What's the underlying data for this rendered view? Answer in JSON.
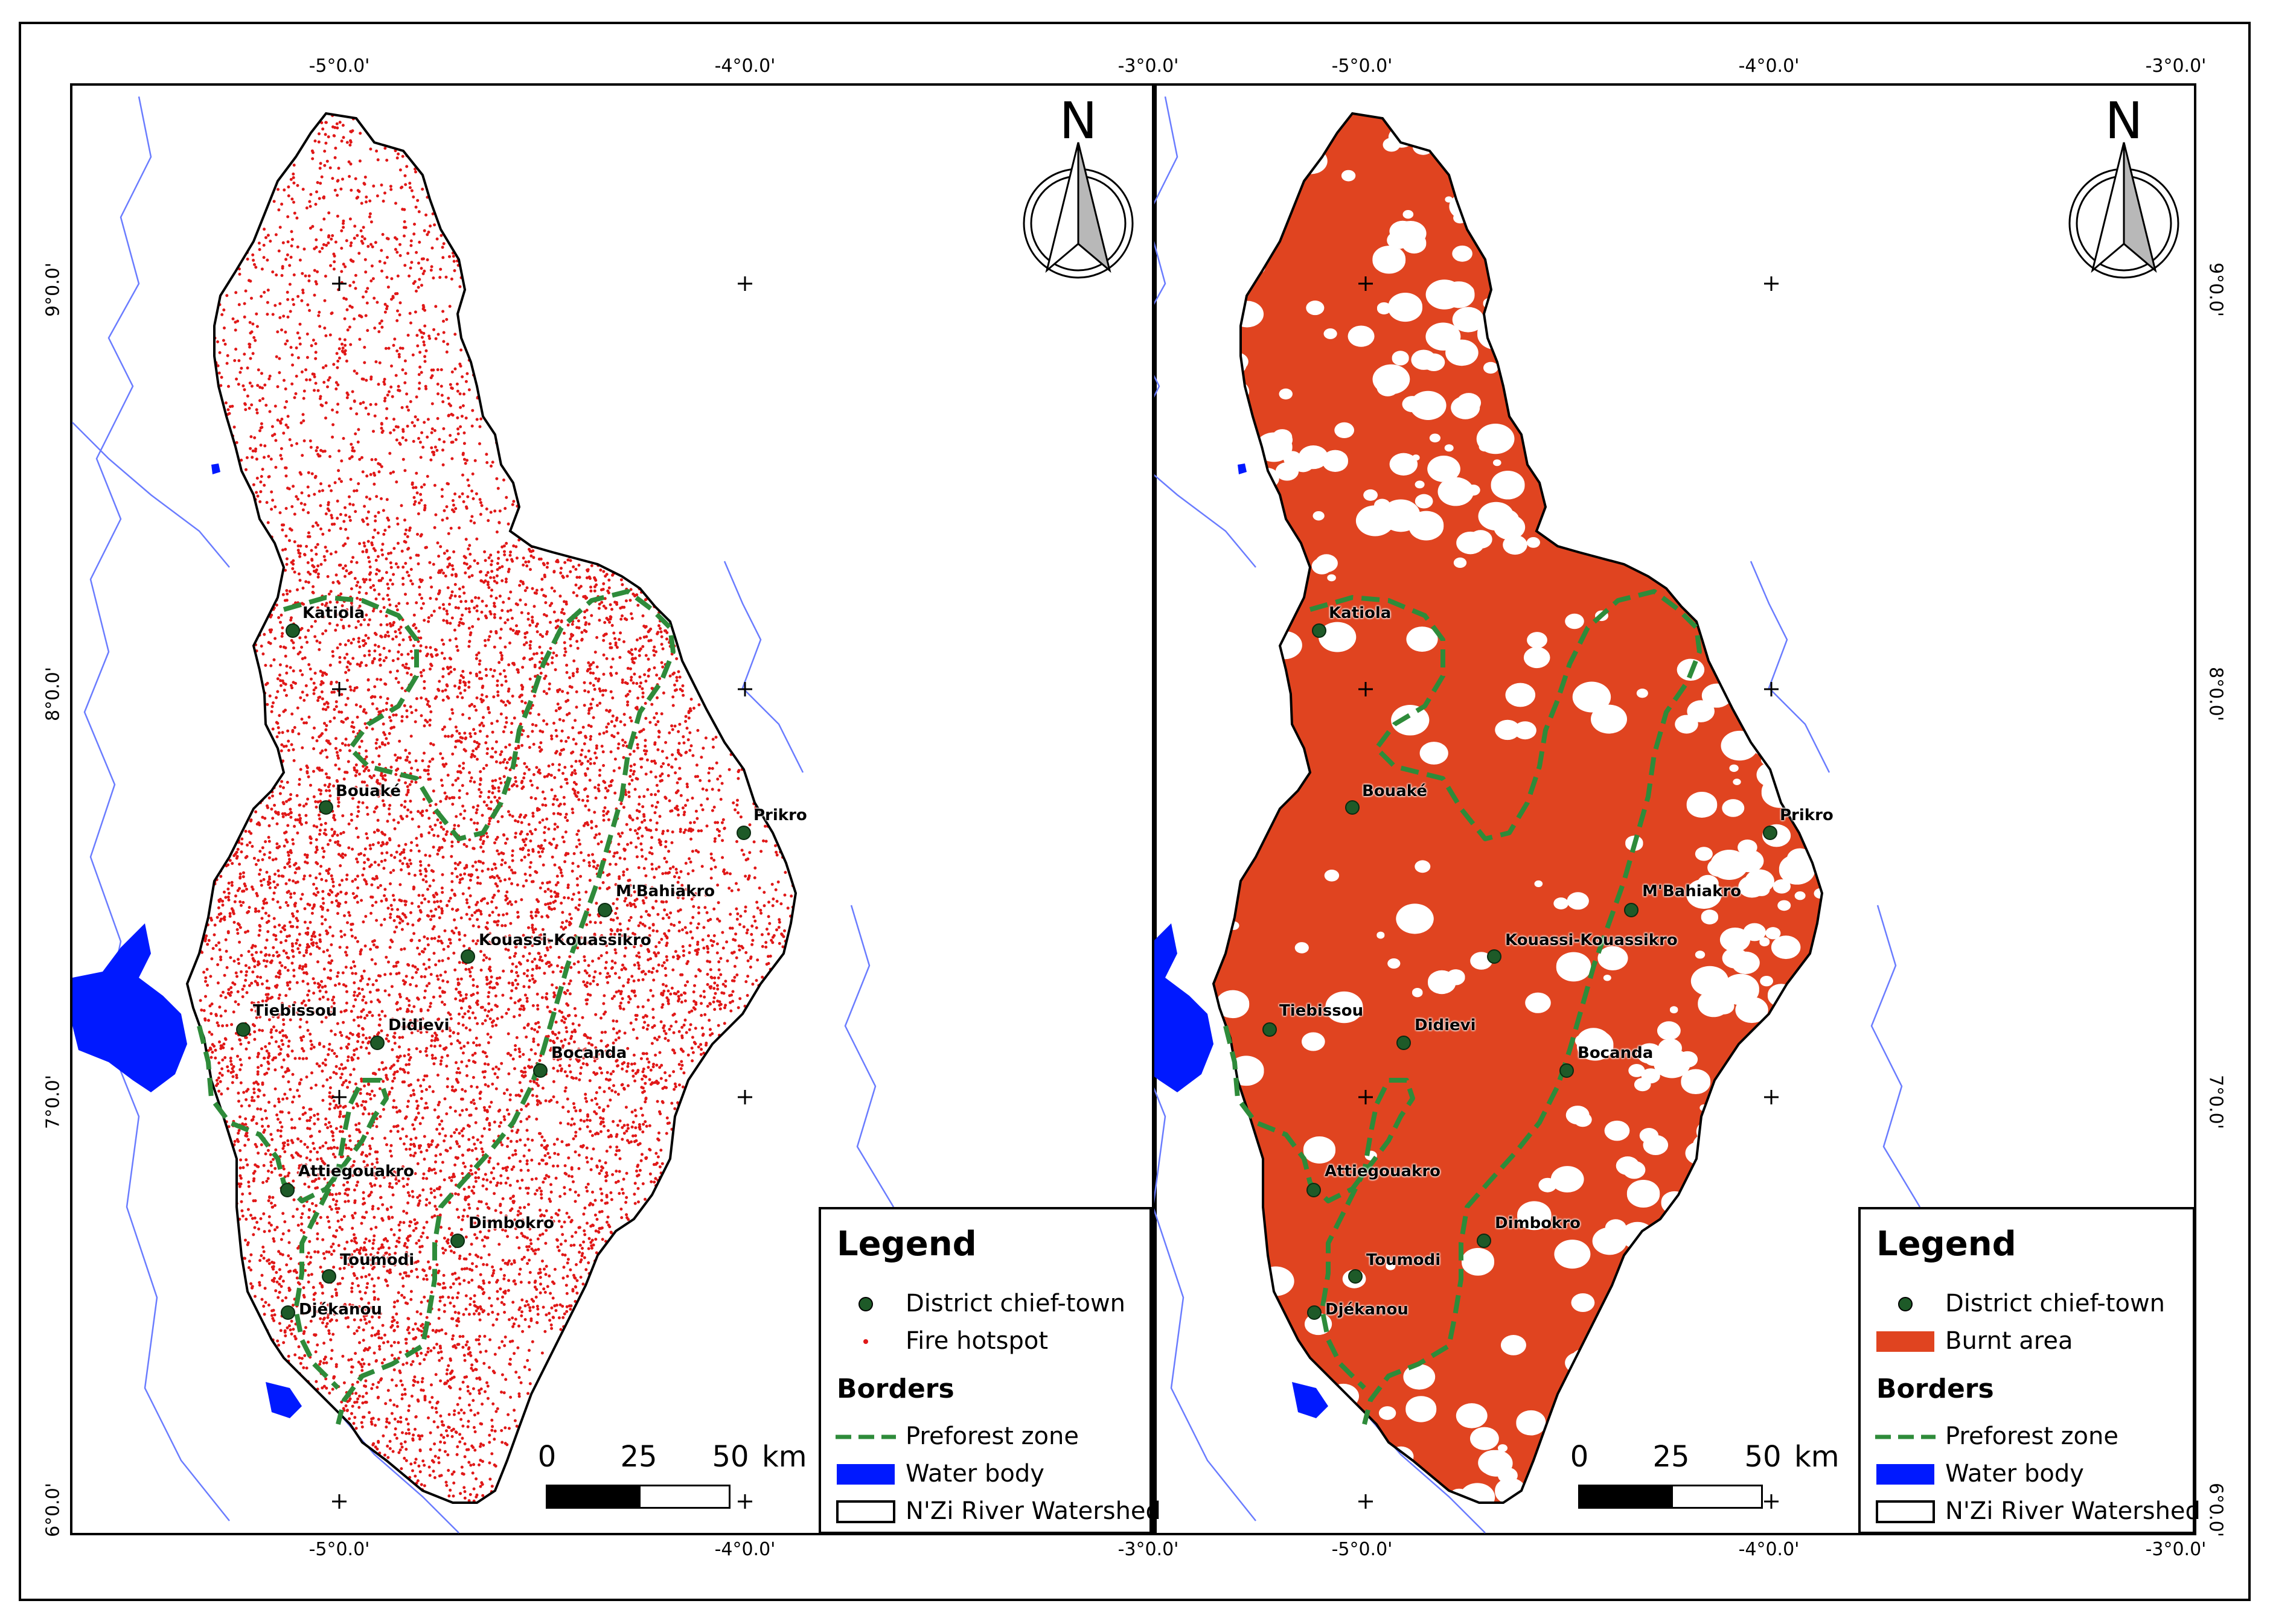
{
  "figure": {
    "colors": {
      "hotspot": "#e01818",
      "burnt": "#e04420",
      "preforest": "#2e8b3a",
      "water": "#0019ff",
      "river": "#6a7cff",
      "town": "#1e5a28",
      "outline": "#000000"
    },
    "grid": {
      "lon_labels": [
        "-5°0.0'",
        "-4°0.0'",
        "-3°0.0'"
      ],
      "lat_labels": [
        "9°0.0'",
        "8°0.0'",
        "7°0.0'",
        "6°0.0'"
      ]
    },
    "north": {
      "letter": "N"
    },
    "scalebar": {
      "ticks": [
        "0",
        "25",
        "50"
      ],
      "unit": "km"
    },
    "towns": [
      "Katiola",
      "Bouaké",
      "Prikro",
      "M'Bahiakro",
      "Kouassi-Kouassikro",
      "Tiebissou",
      "Didievi",
      "Bocanda",
      "Attiegouakro",
      "Dimbokro",
      "Toumodi",
      "Djékanou"
    ],
    "panels": [
      {
        "id": "fire-hotspots",
        "legend": {
          "title": "Legend",
          "items": [
            {
              "label": "District chief-town",
              "symbol": "town-dot"
            },
            {
              "label": "Fire hotspot",
              "symbol": "hotspot-dot"
            }
          ],
          "borders_title": "Borders",
          "borders": [
            {
              "label": "Preforest zone",
              "symbol": "dashed-green-line"
            },
            {
              "label": "Water body",
              "symbol": "blue-fill"
            },
            {
              "label": "N'Zi River Watershed",
              "symbol": "outline-box"
            }
          ]
        }
      },
      {
        "id": "burnt-area",
        "legend": {
          "title": "Legend",
          "items": [
            {
              "label": "District chief-town",
              "symbol": "town-dot"
            },
            {
              "label": "Burnt area",
              "symbol": "burnt-fill"
            }
          ],
          "borders_title": "Borders",
          "borders": [
            {
              "label": "Preforest zone",
              "symbol": "dashed-green-line"
            },
            {
              "label": "Water body",
              "symbol": "blue-fill"
            },
            {
              "label": "N'Zi River Watershed",
              "symbol": "outline-box"
            }
          ]
        }
      }
    ]
  }
}
